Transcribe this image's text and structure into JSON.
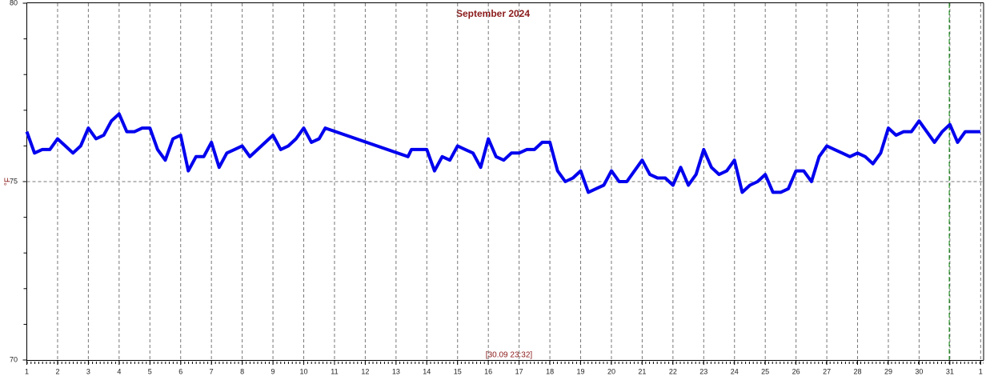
{
  "chart_data": {
    "type": "line",
    "title": "September 2024",
    "ylabel": "°F",
    "cursor_label": "[30.09 23:32]",
    "cursor_x": 30.98,
    "cursor_color": "#008000",
    "xlim": [
      1,
      32.07
    ],
    "ylim": [
      70,
      80
    ],
    "xticks": [
      1,
      2,
      3,
      4,
      5,
      6,
      7,
      8,
      9,
      10,
      11,
      12,
      13,
      14,
      15,
      16,
      17,
      18,
      19,
      20,
      21,
      22,
      23,
      24,
      25,
      26,
      27,
      28,
      29,
      30,
      31,
      {
        "value": 32,
        "label": "1"
      }
    ],
    "yticks": [
      70,
      75,
      80
    ],
    "yminorticks": [
      71,
      72,
      73,
      74,
      76,
      77,
      78,
      79
    ],
    "grid": true,
    "series": [
      {
        "color": "#0000ee",
        "x": [
          1.0,
          1.25,
          1.5,
          1.75,
          2.0,
          2.25,
          2.5,
          2.75,
          3.0,
          3.25,
          3.5,
          3.75,
          4.0,
          4.25,
          4.5,
          4.75,
          5.0,
          5.25,
          5.5,
          5.75,
          6.0,
          6.25,
          6.5,
          6.75,
          7.0,
          7.25,
          7.5,
          7.75,
          8.0,
          8.25,
          8.5,
          8.75,
          9.0,
          9.25,
          9.5,
          9.75,
          10.0,
          10.25,
          10.5,
          10.7,
          13.39,
          13.5,
          13.75,
          14.0,
          14.25,
          14.5,
          14.75,
          15.0,
          15.25,
          15.5,
          15.75,
          16.0,
          16.25,
          16.5,
          16.75,
          17.0,
          17.25,
          17.5,
          17.75,
          18.0,
          18.25,
          18.5,
          18.75,
          19.0,
          19.25,
          19.5,
          19.75,
          20.0,
          20.25,
          20.5,
          20.75,
          21.0,
          21.25,
          21.5,
          21.75,
          22.0,
          22.25,
          22.5,
          22.75,
          23.0,
          23.25,
          23.5,
          23.75,
          24.0,
          24.25,
          24.5,
          24.75,
          25.0,
          25.25,
          25.5,
          25.75,
          26.0,
          26.25,
          26.5,
          26.75,
          27.0,
          27.25,
          27.5,
          27.75,
          28.0,
          28.25,
          28.5,
          28.75,
          29.0,
          29.25,
          29.5,
          29.75,
          30.0,
          30.25,
          30.5,
          30.75,
          31.0,
          31.25,
          31.5,
          31.75,
          31.99
        ],
        "values": [
          76.4,
          75.8,
          75.9,
          75.9,
          76.2,
          76.0,
          75.8,
          76.0,
          76.5,
          76.2,
          76.3,
          76.7,
          76.9,
          76.4,
          76.4,
          76.5,
          76.5,
          75.9,
          75.6,
          76.2,
          76.3,
          75.3,
          75.7,
          75.7,
          76.1,
          75.4,
          75.8,
          75.9,
          76.0,
          75.7,
          75.9,
          76.1,
          76.3,
          75.9,
          76.0,
          76.2,
          76.5,
          76.1,
          76.2,
          76.5,
          75.7,
          75.9,
          75.9,
          75.9,
          75.3,
          75.7,
          75.6,
          76.0,
          75.9,
          75.8,
          75.4,
          76.2,
          75.7,
          75.6,
          75.8,
          75.8,
          75.9,
          75.9,
          76.1,
          76.1,
          75.3,
          75.0,
          75.1,
          75.3,
          74.7,
          74.8,
          74.9,
          75.3,
          75.0,
          75.0,
          75.3,
          75.6,
          75.2,
          75.1,
          75.1,
          74.9,
          75.4,
          74.9,
          75.2,
          75.9,
          75.4,
          75.2,
          75.3,
          75.6,
          74.7,
          74.9,
          75.0,
          75.2,
          74.7,
          74.7,
          74.8,
          75.3,
          75.3,
          75.0,
          75.7,
          76.0,
          75.9,
          75.8,
          75.7,
          75.8,
          75.7,
          75.5,
          75.8,
          76.5,
          76.3,
          76.4,
          76.4,
          76.7,
          76.4,
          76.1,
          76.4,
          76.6,
          76.1,
          76.4,
          76.4,
          76.4
        ]
      }
    ]
  }
}
